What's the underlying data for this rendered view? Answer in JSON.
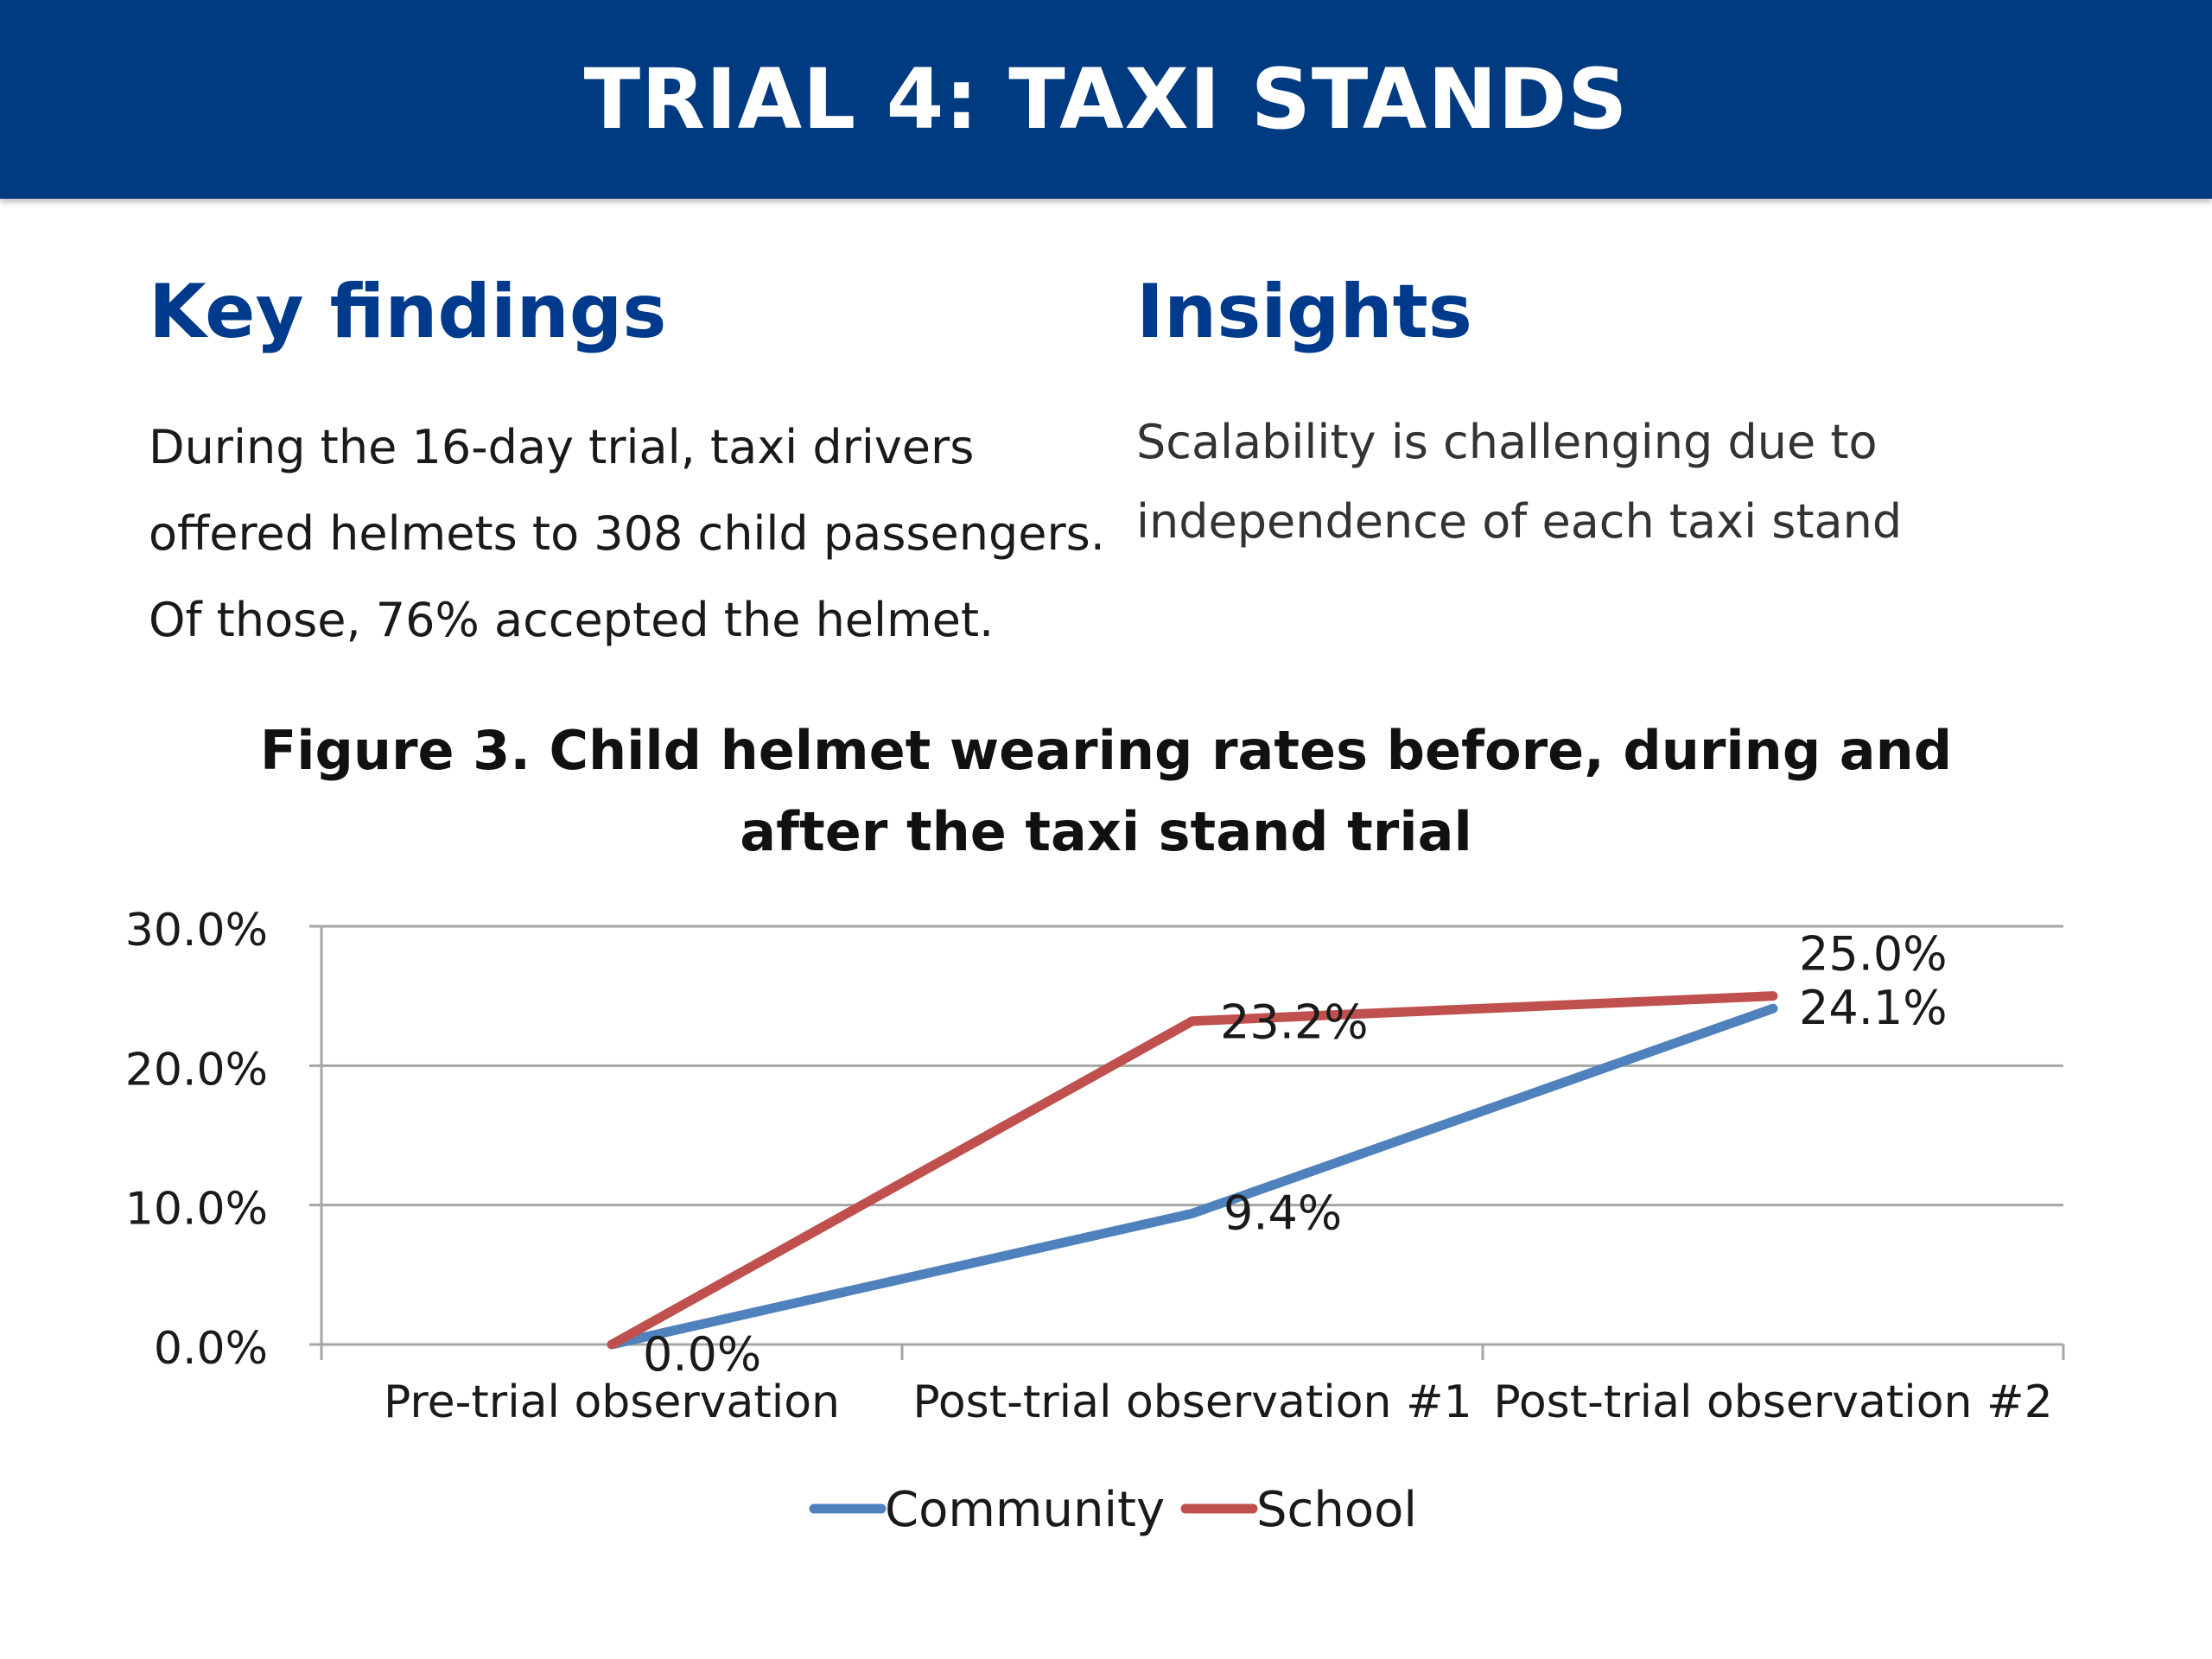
{
  "header": {
    "title": "TRIAL 4: TAXI STANDS"
  },
  "key_findings": {
    "heading": "Key findings",
    "lines": [
      "During the 16-day trial, taxi drivers",
      "offered helmets to 308 child passengers.",
      "Of those, 76% accepted the helmet."
    ]
  },
  "insights": {
    "heading": "Insights",
    "lines": [
      "Scalability is challenging due to",
      "independence of each taxi stand"
    ]
  },
  "colors": {
    "banner": "#003a80",
    "heading": "#003a8c",
    "community": "#4f81bd",
    "school": "#c0504d",
    "gridline": "#a6a6a6"
  },
  "chart_data": {
    "type": "line",
    "title_lines": [
      "Figure 3. Child helmet wearing rates before, during and",
      "after the taxi stand trial"
    ],
    "categories": [
      "Pre-trial observation",
      "Post-trial observation #1",
      "Post-trial observation #2"
    ],
    "series": [
      {
        "name": "Community",
        "values": [
          0.0,
          9.4,
          24.1
        ],
        "labels": [
          "0.0%",
          "9.4%",
          "24.1%"
        ],
        "color": "#4f81bd"
      },
      {
        "name": "School",
        "values": [
          0.0,
          23.2,
          25.0
        ],
        "labels": [
          "",
          "23.2%",
          "25.0%"
        ],
        "color": "#c0504d"
      }
    ],
    "y_ticks": [
      0,
      10,
      20,
      30
    ],
    "y_tick_labels": [
      "0.0%",
      "10.0%",
      "20.0%",
      "30.0%"
    ],
    "ylim": [
      0,
      30
    ],
    "xlabel": "",
    "ylabel": "",
    "grid": true,
    "legend_position": "bottom"
  }
}
